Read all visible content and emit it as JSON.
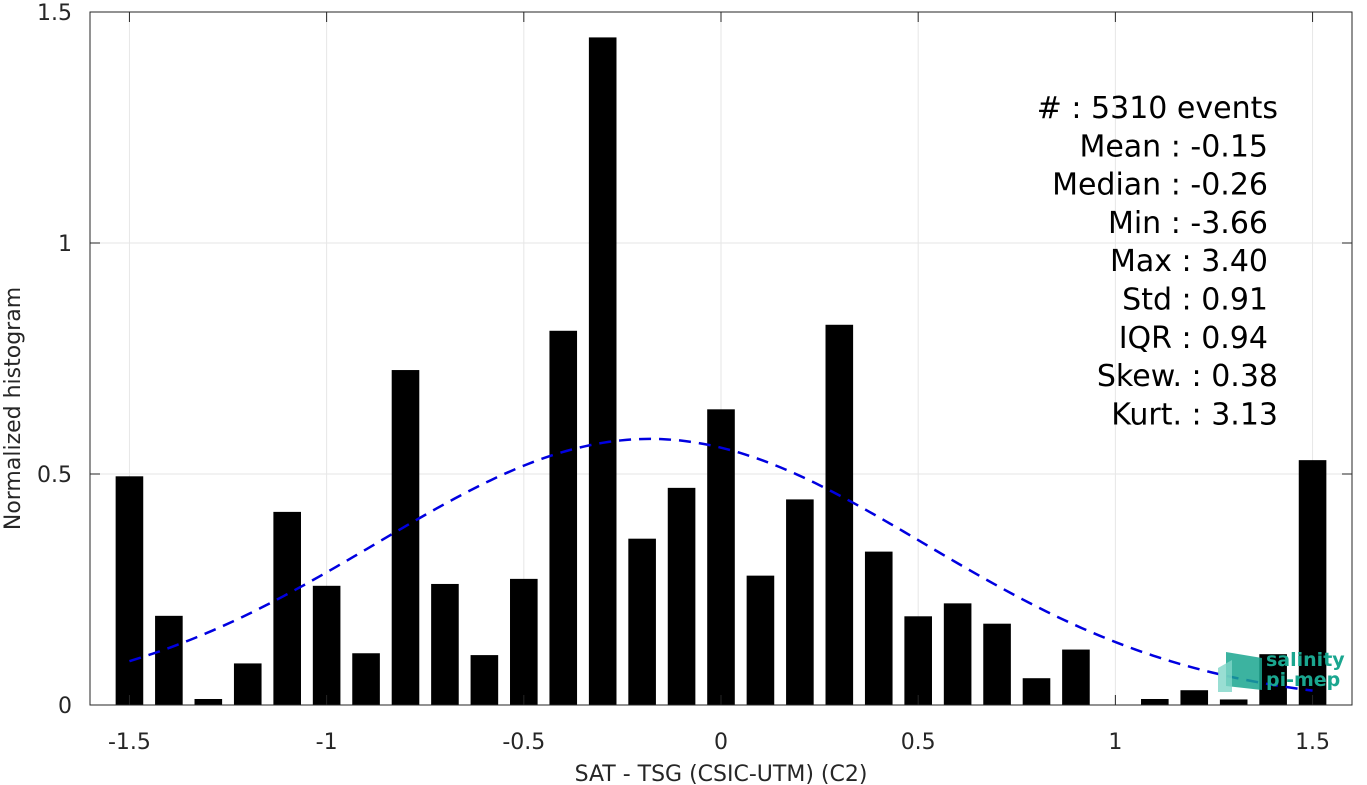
{
  "chart_data": {
    "type": "bar",
    "xlabel": "SAT - TSG (CSIC-UTM) (C2)",
    "ylabel": "Normalized histogram",
    "xlim": [
      -1.6,
      1.6
    ],
    "ylim": [
      0,
      1.5
    ],
    "xticks": [
      -1.5,
      -1,
      -0.5,
      0,
      0.5,
      1,
      1.5
    ],
    "xtick_labels": [
      "-1.5",
      "-1",
      "-0.5",
      "0",
      "0.5",
      "1",
      "1.5"
    ],
    "yticks": [
      0,
      0.5,
      1,
      1.5
    ],
    "ytick_labels": [
      "0",
      "0.5",
      "1",
      "1.5"
    ],
    "grid": true,
    "bar_width": 0.07,
    "bar_color": "#000000",
    "x": [
      -1.5,
      -1.4,
      -1.3,
      -1.2,
      -1.1,
      -1.0,
      -0.9,
      -0.8,
      -0.7,
      -0.6,
      -0.5,
      -0.4,
      -0.3,
      -0.2,
      -0.1,
      0.0,
      0.1,
      0.2,
      0.3,
      0.4,
      0.5,
      0.6,
      0.7,
      0.8,
      0.9,
      1.0,
      1.1,
      1.2,
      1.3,
      1.4,
      1.5
    ],
    "values": [
      0.495,
      0.193,
      0.013,
      0.09,
      0.418,
      0.258,
      0.112,
      0.725,
      0.262,
      0.108,
      0.273,
      0.81,
      1.445,
      0.36,
      0.47,
      0.64,
      0.28,
      0.445,
      0.823,
      0.332,
      0.192,
      0.22,
      0.176,
      0.058,
      0.12,
      0.0,
      0.013,
      0.032,
      0.012,
      0.11,
      0.53
    ],
    "fit_curve": {
      "style": "dashed",
      "color": "#0000e0",
      "mean": -0.18,
      "std": 0.695,
      "peak": 0.576,
      "x_range": [
        -1.5,
        1.5
      ]
    },
    "stats": [
      {
        "label": "#  ",
        "value": "5310 events"
      },
      {
        "label": "Mean",
        "value": "-0.15"
      },
      {
        "label": "Median",
        "value": "-0.26"
      },
      {
        "label": "Min",
        "value": "-3.66"
      },
      {
        "label": "Max",
        "value": "3.40"
      },
      {
        "label": "Std",
        "value": "0.91"
      },
      {
        "label": "IQR",
        "value": "0.94"
      },
      {
        "label": "Skew.",
        "value": "0.38"
      },
      {
        "label": "Kurt.",
        "value": "3.13"
      }
    ]
  },
  "logo": {
    "line1": "salinity",
    "line2": "pi-mep",
    "color": "#1aa68f"
  }
}
